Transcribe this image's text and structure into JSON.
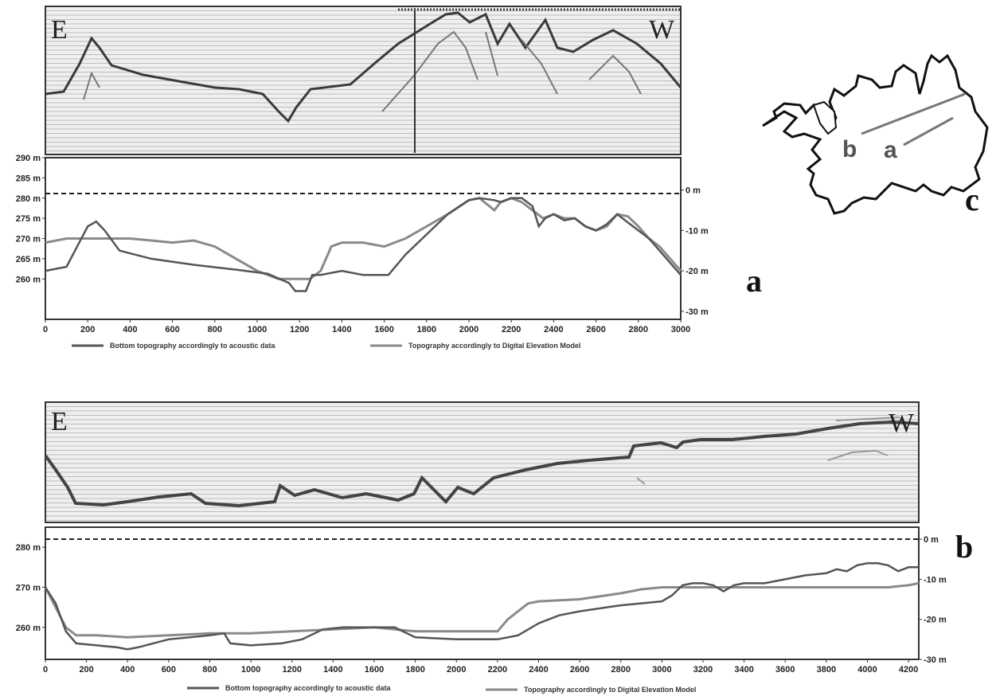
{
  "colors": {
    "acoustic": "#555555",
    "dem": "#8a8a8a",
    "echo_bg": "#efefef",
    "echo_line": "#bdbdbd",
    "frame": "#333333",
    "sea_level": "#222222"
  },
  "panel_labels": {
    "a": "a",
    "b": "b",
    "c": "c"
  },
  "map": {
    "label_a": "a",
    "label_b": "b"
  },
  "chart_data": [
    {
      "id": "a",
      "type": "line",
      "echogram": {
        "left_label": "E",
        "right_label": "W"
      },
      "x_ticks": [
        "0",
        "200",
        "400",
        "600",
        "800",
        "1000",
        "1200",
        "1400",
        "1600",
        "1800",
        "2000",
        "2200",
        "2400",
        "2600",
        "2800",
        "3000"
      ],
      "xlim": [
        0,
        3000
      ],
      "left_axis": {
        "ticks": [
          "290 m",
          "285 m",
          "280 m",
          "275 m",
          "270 m",
          "265 m",
          "260 m"
        ],
        "values": [
          290,
          285,
          280,
          275,
          270,
          265,
          260
        ],
        "range": [
          250,
          290
        ]
      },
      "right_axis": {
        "ticks": [
          "0 m",
          "-10 m",
          "-20 m",
          "-30 m"
        ],
        "values": [
          0,
          -10,
          -20,
          -30
        ],
        "zero_at_left": 282
      },
      "sea_level": 282,
      "legend": [
        "Bottom topography accordingly to acoustic data",
        "Topography accordingly to Digital Elevation Model"
      ],
      "series": [
        {
          "name": "Bottom topography accordingly to acoustic data",
          "x": [
            0,
            100,
            150,
            200,
            240,
            280,
            350,
            500,
            700,
            900,
            1050,
            1150,
            1180,
            1230,
            1260,
            1300,
            1400,
            1500,
            1620,
            1700,
            1800,
            1900,
            2000,
            2050,
            2120,
            2150,
            2200,
            2250,
            2300,
            2330,
            2360,
            2400,
            2450,
            2500,
            2550,
            2600,
            2650,
            2700,
            2750,
            2800,
            2850,
            2900,
            2950,
            3000
          ],
          "y": [
            262,
            263,
            268,
            273,
            274.2,
            272,
            267,
            265,
            263.5,
            262.3,
            261.3,
            259,
            257,
            257,
            261,
            261,
            262,
            261,
            261,
            266,
            271,
            276,
            279.5,
            280,
            279.5,
            279,
            280,
            280,
            278,
            273,
            275,
            276,
            274.5,
            275,
            273,
            272,
            273.5,
            276,
            274,
            272,
            270,
            267,
            264,
            261
          ]
        },
        {
          "name": "Topography accordingly to Digital Elevation Model",
          "x": [
            0,
            100,
            200,
            300,
            400,
            500,
            600,
            700,
            800,
            900,
            1000,
            1100,
            1200,
            1250,
            1300,
            1350,
            1400,
            1500,
            1600,
            1700,
            1800,
            1900,
            2000,
            2050,
            2120,
            2150,
            2200,
            2250,
            2300,
            2350,
            2400,
            2450,
            2500,
            2550,
            2600,
            2650,
            2700,
            2750,
            2800,
            2850,
            2900,
            2950,
            3000
          ],
          "y": [
            269,
            270,
            270,
            270,
            270,
            269.5,
            269,
            269.5,
            268,
            265,
            262,
            260,
            260,
            260,
            262,
            268,
            269,
            269,
            268,
            270,
            273,
            276,
            279.5,
            280,
            277,
            279,
            280,
            279,
            277,
            275,
            276,
            275,
            275,
            273,
            272,
            273,
            276,
            275.5,
            273,
            270,
            268,
            265,
            262
          ]
        }
      ]
    },
    {
      "id": "b",
      "type": "line",
      "echogram": {
        "left_label": "E",
        "right_label": "W"
      },
      "x_ticks": [
        "0",
        "200",
        "400",
        "600",
        "800",
        "1000",
        "1200",
        "1400",
        "1600",
        "1800",
        "2000",
        "2200",
        "2400",
        "2600",
        "2800",
        "3000",
        "3200",
        "3400",
        "3600",
        "3800",
        "4000",
        "4200"
      ],
      "xlim": [
        0,
        4250
      ],
      "left_axis": {
        "ticks": [
          "280 m",
          "270 m",
          "260 m"
        ],
        "values": [
          280,
          270,
          260
        ],
        "range": [
          252,
          285
        ]
      },
      "right_axis": {
        "ticks": [
          "0 m",
          "-10 m",
          "-20 m",
          "-30 m"
        ],
        "values": [
          0,
          -10,
          -20,
          -30
        ],
        "zero_at_left": 282
      },
      "sea_level": 282,
      "legend": [
        "Bottom topography accordingly to acoustic data",
        "Topography accordingly to Digital Elevation Model"
      ],
      "series": [
        {
          "name": "Bottom topography accordingly to acoustic data",
          "x": [
            0,
            50,
            100,
            150,
            250,
            350,
            400,
            450,
            600,
            800,
            870,
            900,
            1000,
            1150,
            1250,
            1350,
            1450,
            1600,
            1700,
            1800,
            2000,
            2100,
            2200,
            2300,
            2400,
            2500,
            2600,
            2800,
            3000,
            3050,
            3100,
            3150,
            3200,
            3250,
            3300,
            3350,
            3400,
            3500,
            3600,
            3700,
            3800,
            3850,
            3900,
            3950,
            4000,
            4050,
            4100,
            4150,
            4200,
            4250
          ],
          "y": [
            270,
            266,
            259,
            256,
            255.5,
            255,
            254.5,
            255,
            257,
            258,
            258.5,
            256,
            255.5,
            256,
            257,
            259.5,
            260,
            260,
            260,
            257.5,
            257,
            257,
            257,
            258,
            261,
            263,
            264,
            265.5,
            266.5,
            268,
            270.5,
            271,
            271,
            270.5,
            269,
            270.5,
            271,
            271,
            272,
            273,
            273.5,
            274.5,
            274,
            275.5,
            276,
            276,
            275.5,
            274,
            275,
            275
          ]
        },
        {
          "name": "Topography accordingly to Digital Elevation Model",
          "x": [
            0,
            50,
            100,
            150,
            250,
            400,
            600,
            800,
            1000,
            1200,
            1400,
            1600,
            1800,
            2000,
            2200,
            2250,
            2300,
            2350,
            2400,
            2600,
            2800,
            2900,
            3000,
            3200,
            3400,
            3600,
            3800,
            4000,
            4100,
            4200,
            4250
          ],
          "y": [
            270,
            265,
            260,
            258,
            258,
            257.5,
            258,
            258.5,
            258.5,
            259,
            259.5,
            260,
            259,
            259,
            259,
            262,
            264,
            266,
            266.5,
            267,
            268.5,
            269.5,
            270,
            270,
            270,
            270,
            270,
            270,
            270,
            270.5,
            271
          ]
        }
      ]
    }
  ]
}
